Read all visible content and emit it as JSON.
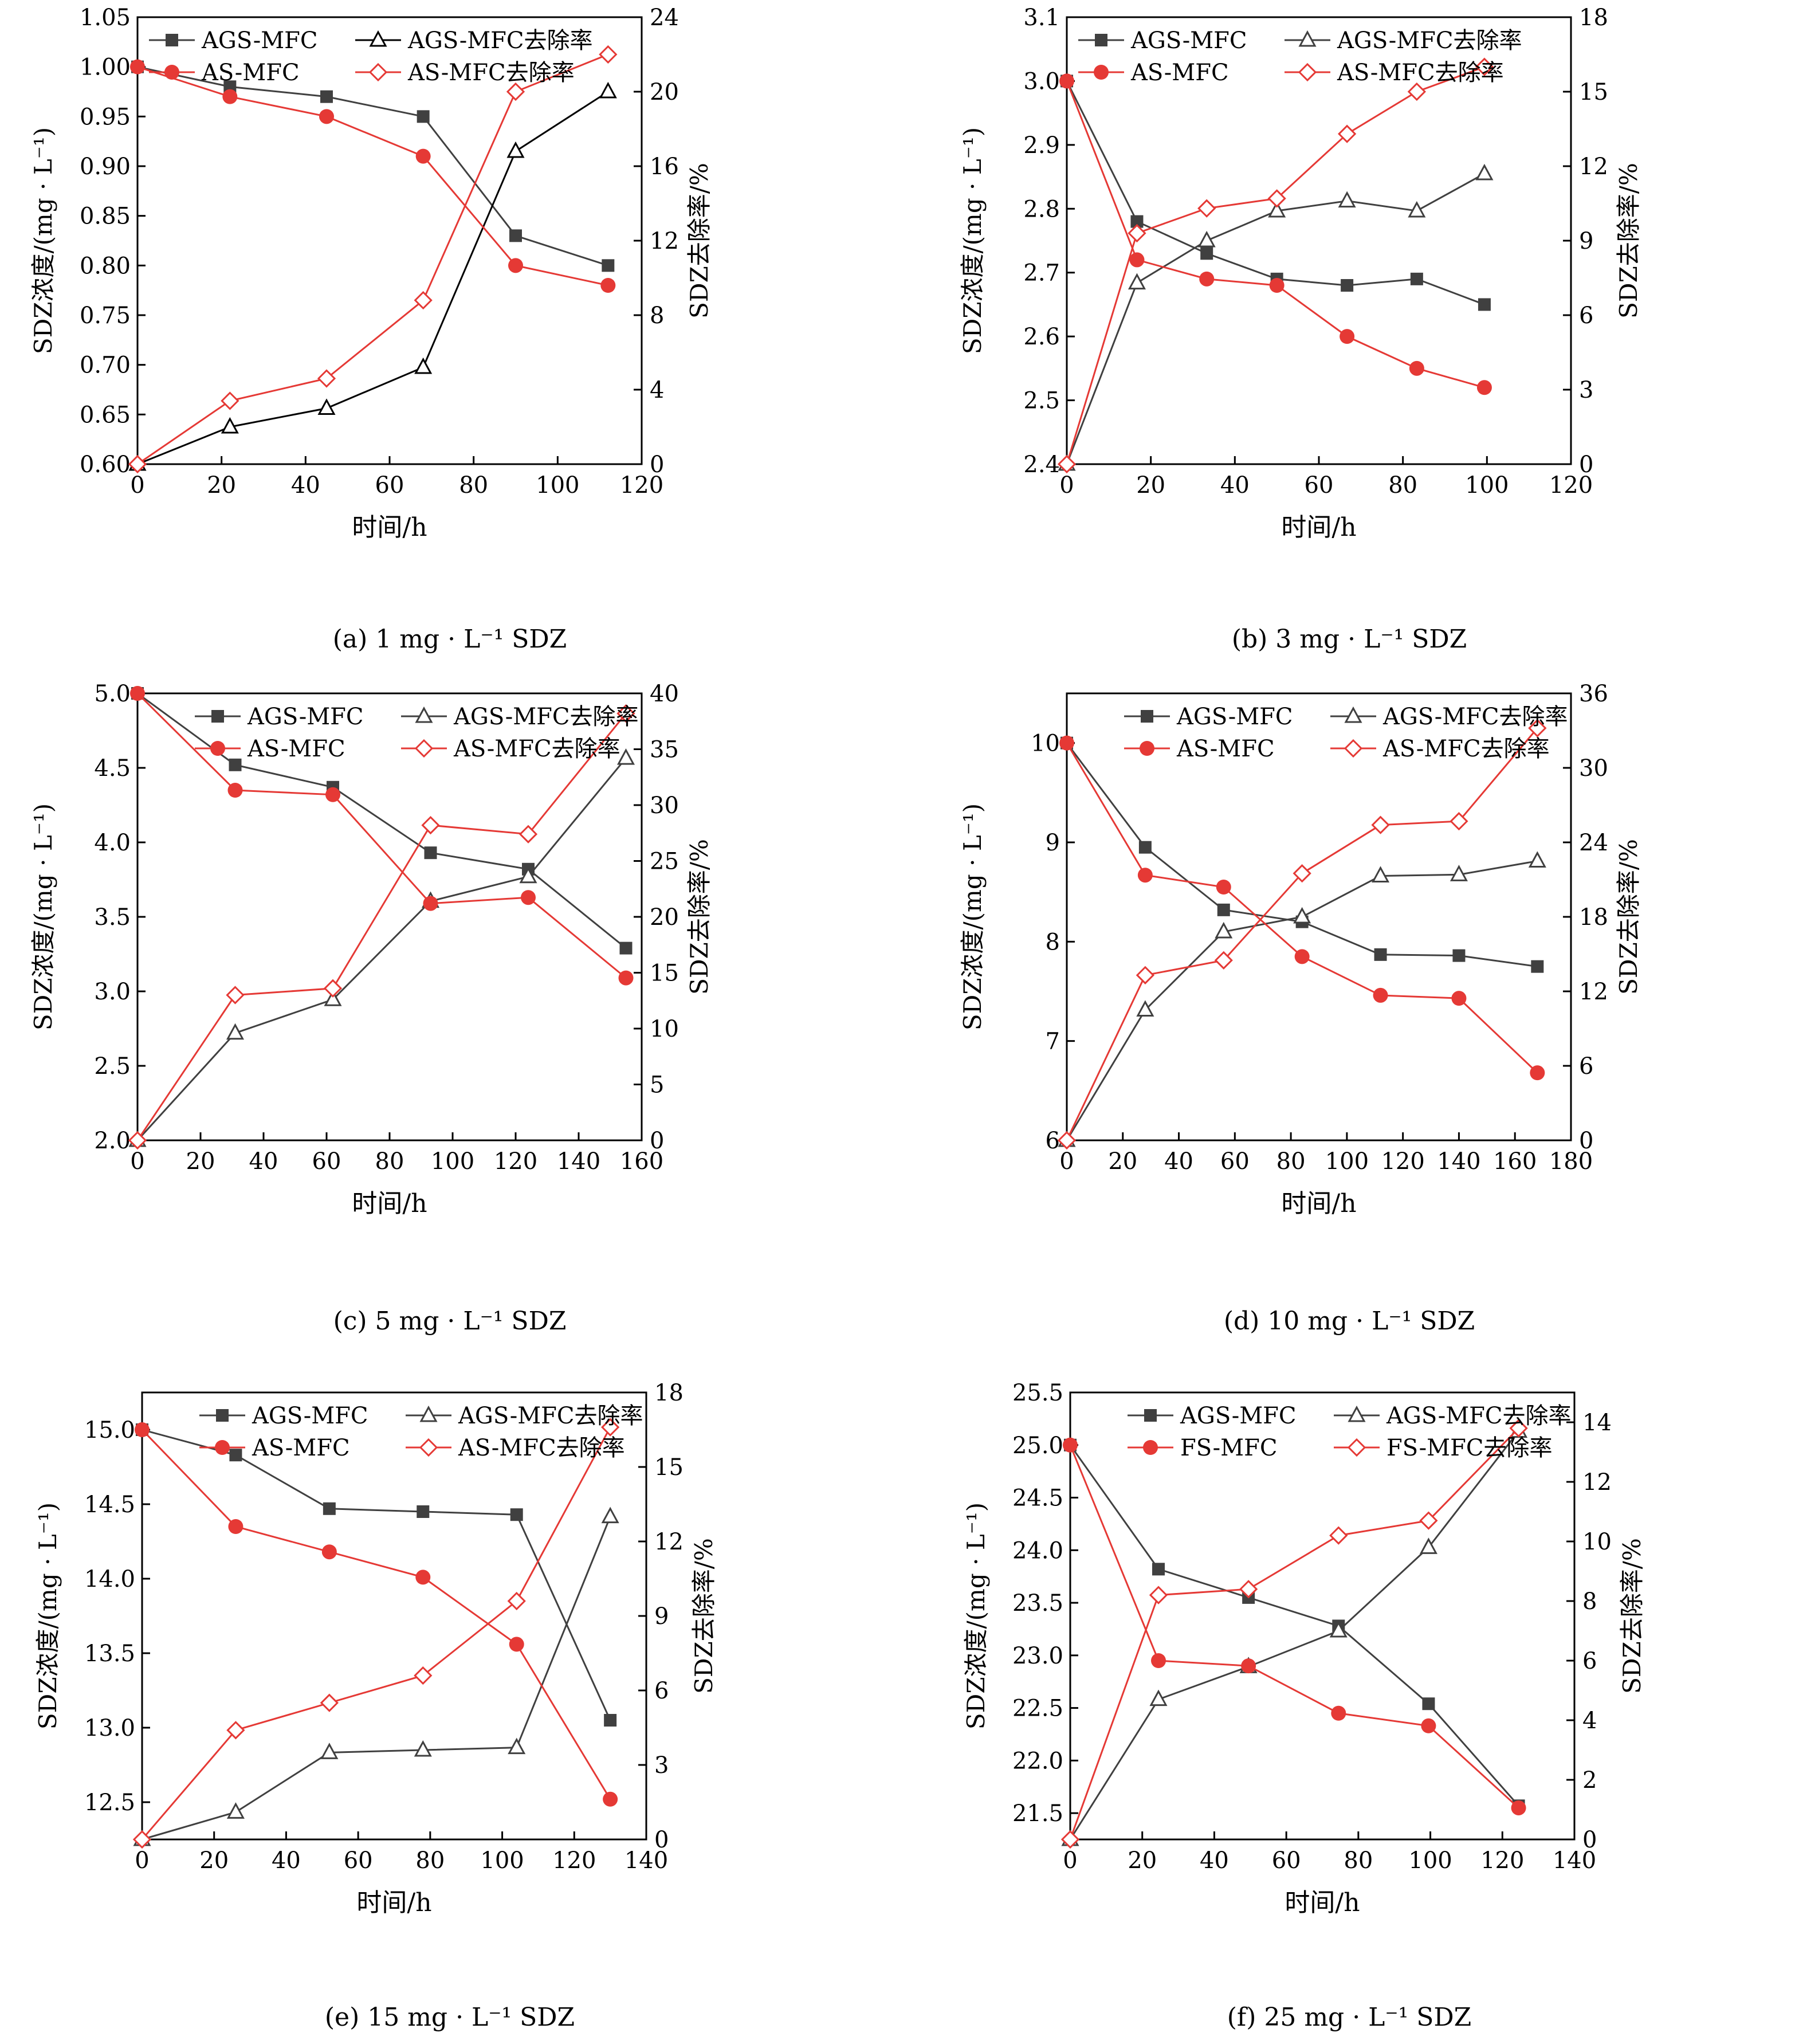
{
  "chart_data": [
    {
      "type": "line",
      "caption": "(a) 1 mg · L⁻¹ SDZ",
      "xlabel": "时间/h",
      "ylabel": "SDZ浓度/(mg · L⁻¹)",
      "y2label": "SDZ去除率/%",
      "xlim": [
        0,
        120
      ],
      "xticks": [
        0,
        20,
        40,
        60,
        80,
        100,
        120
      ],
      "ylim": [
        0.6,
        1.05
      ],
      "yticks": [
        0.6,
        0.65,
        0.7,
        0.75,
        0.8,
        0.85,
        0.9,
        0.95,
        1.0,
        1.05
      ],
      "ydecimals": 2,
      "y2lim": [
        0,
        24
      ],
      "y2ticks": [
        0,
        4,
        8,
        12,
        16,
        20,
        24
      ],
      "y2decimals": 0,
      "legend_position": "top-left",
      "series": [
        {
          "name": "AGS-MFC",
          "axis": "left",
          "marker": "square",
          "color": "#404040",
          "x": [
            0,
            22,
            45,
            68,
            90,
            112
          ],
          "y": [
            1.0,
            0.98,
            0.97,
            0.95,
            0.83,
            0.8
          ]
        },
        {
          "name": "AGS-MFC去除率",
          "axis": "right",
          "marker": "triangle-open",
          "color": "#000000",
          "x": [
            0,
            22,
            45,
            68,
            90,
            112
          ],
          "y": [
            0,
            2.0,
            3.0,
            5.2,
            16.8,
            20.0
          ]
        },
        {
          "name": "AS-MFC",
          "axis": "left",
          "marker": "circle",
          "color": "#e53935",
          "x": [
            0,
            22,
            45,
            68,
            90,
            112
          ],
          "y": [
            1.0,
            0.97,
            0.95,
            0.91,
            0.8,
            0.78
          ]
        },
        {
          "name": "AS-MFC去除率",
          "axis": "right",
          "marker": "diamond-open",
          "color": "#e53935",
          "x": [
            0,
            22,
            45,
            68,
            90,
            112
          ],
          "y": [
            0,
            3.4,
            4.6,
            8.8,
            20.0,
            22.0
          ]
        }
      ]
    },
    {
      "type": "line",
      "caption": "(b) 3 mg · L⁻¹ SDZ",
      "xlabel": "时间/h",
      "ylabel": "SDZ浓度/(mg · L⁻¹)",
      "y2label": "SDZ去除率/%",
      "xlim": [
        0,
        120
      ],
      "xticks": [
        0,
        20,
        40,
        60,
        80,
        100,
        120
      ],
      "ylim": [
        2.4,
        3.1
      ],
      "yticks": [
        2.4,
        2.5,
        2.6,
        2.7,
        2.8,
        2.9,
        3.0,
        3.1
      ],
      "ydecimals": 1,
      "y2lim": [
        0,
        18
      ],
      "y2ticks": [
        0,
        3,
        6,
        9,
        12,
        15,
        18
      ],
      "y2decimals": 0,
      "legend_position": "top-left",
      "series": [
        {
          "name": "AGS-MFC",
          "axis": "left",
          "marker": "square",
          "color": "#404040",
          "x": [
            0,
            16.7,
            33.3,
            50,
            66.7,
            83.3,
            99.4
          ],
          "y": [
            3.0,
            2.78,
            2.73,
            2.69,
            2.68,
            2.69,
            2.65
          ]
        },
        {
          "name": "AGS-MFC去除率",
          "axis": "right",
          "marker": "triangle-open",
          "color": "#404040",
          "x": [
            0,
            16.7,
            33.3,
            50,
            66.7,
            83.3,
            99.4
          ],
          "y": [
            0,
            7.3,
            9.0,
            10.2,
            10.6,
            10.2,
            11.7
          ]
        },
        {
          "name": "AS-MFC",
          "axis": "left",
          "marker": "circle",
          "color": "#e53935",
          "x": [
            0,
            16.7,
            33.3,
            50,
            66.7,
            83.3,
            99.4
          ],
          "y": [
            3.0,
            2.72,
            2.69,
            2.68,
            2.6,
            2.55,
            2.52
          ]
        },
        {
          "name": "AS-MFC去除率",
          "axis": "right",
          "marker": "diamond-open",
          "color": "#e53935",
          "x": [
            0,
            16.7,
            33.3,
            50,
            66.7,
            83.3,
            99.4
          ],
          "y": [
            0,
            9.3,
            10.3,
            10.7,
            13.3,
            15.0,
            16.0
          ]
        }
      ]
    },
    {
      "type": "line",
      "caption": "(c) 5 mg · L⁻¹ SDZ",
      "xlabel": "时间/h",
      "ylabel": "SDZ浓度/(mg · L⁻¹)",
      "y2label": "SDZ去除率/%",
      "xlim": [
        0,
        160
      ],
      "xticks": [
        0,
        20,
        40,
        60,
        80,
        100,
        120,
        140,
        160
      ],
      "ylim": [
        2.0,
        5.0
      ],
      "yticks": [
        2.0,
        2.5,
        3.0,
        3.5,
        4.0,
        4.5,
        5.0
      ],
      "ydecimals": 1,
      "y2lim": [
        0,
        40
      ],
      "y2ticks": [
        0,
        5,
        10,
        15,
        20,
        25,
        30,
        35,
        40
      ],
      "y2decimals": 0,
      "legend_position": "top-right",
      "series": [
        {
          "name": "AGS-MFC",
          "axis": "left",
          "marker": "square",
          "color": "#404040",
          "x": [
            0,
            31,
            62,
            93,
            124,
            155
          ],
          "y": [
            5.0,
            4.52,
            4.37,
            3.93,
            3.82,
            3.29
          ]
        },
        {
          "name": "AGS-MFC去除率",
          "axis": "right",
          "marker": "triangle-open",
          "color": "#404040",
          "x": [
            0,
            31,
            62,
            93,
            124,
            155
          ],
          "y": [
            0,
            9.6,
            12.6,
            21.4,
            23.6,
            34.2
          ]
        },
        {
          "name": "AS-MFC",
          "axis": "left",
          "marker": "circle",
          "color": "#e53935",
          "x": [
            0,
            31,
            62,
            93,
            124,
            155
          ],
          "y": [
            5.0,
            4.35,
            4.32,
            3.59,
            3.63,
            3.09
          ]
        },
        {
          "name": "AS-MFC去除率",
          "axis": "right",
          "marker": "diamond-open",
          "color": "#e53935",
          "x": [
            0,
            31,
            62,
            93,
            124,
            155
          ],
          "y": [
            0,
            13.0,
            13.6,
            28.2,
            27.4,
            38.2
          ]
        }
      ]
    },
    {
      "type": "line",
      "caption": "(d) 10 mg · L⁻¹ SDZ",
      "xlabel": "时间/h",
      "ylabel": "SDZ浓度/(mg · L⁻¹)",
      "y2label": "SDZ去除率/%",
      "xlim": [
        0,
        180
      ],
      "xticks": [
        0,
        20,
        40,
        60,
        80,
        100,
        120,
        140,
        160,
        180
      ],
      "ylim": [
        6,
        10.5
      ],
      "yticks": [
        6,
        7,
        8,
        9,
        10
      ],
      "ydecimals": 0,
      "y2lim": [
        0,
        36
      ],
      "y2ticks": [
        0,
        6,
        12,
        18,
        24,
        30,
        36
      ],
      "y2decimals": 0,
      "legend_position": "top-right",
      "series": [
        {
          "name": "AGS-MFC",
          "axis": "left",
          "marker": "square",
          "color": "#404040",
          "x": [
            0,
            28,
            56,
            84,
            112,
            140,
            168
          ],
          "y": [
            10.0,
            8.95,
            8.32,
            8.2,
            7.87,
            7.86,
            7.75
          ]
        },
        {
          "name": "AGS-MFC去除率",
          "axis": "right",
          "marker": "triangle-open",
          "color": "#404040",
          "x": [
            0,
            28,
            56,
            84,
            112,
            140,
            168
          ],
          "y": [
            0,
            10.5,
            16.8,
            18.0,
            21.3,
            21.4,
            22.5
          ]
        },
        {
          "name": "AS-MFC",
          "axis": "left",
          "marker": "circle",
          "color": "#e53935",
          "x": [
            0,
            28,
            56,
            84,
            112,
            140,
            168
          ],
          "y": [
            10.0,
            8.67,
            8.55,
            7.85,
            7.46,
            7.43,
            6.68
          ]
        },
        {
          "name": "AS-MFC去除率",
          "axis": "right",
          "marker": "diamond-open",
          "color": "#e53935",
          "x": [
            0,
            28,
            56,
            84,
            112,
            140,
            168
          ],
          "y": [
            0,
            13.3,
            14.5,
            21.5,
            25.4,
            25.7,
            33.2
          ]
        }
      ]
    },
    {
      "type": "line",
      "caption": "(e) 15 mg · L⁻¹ SDZ",
      "xlabel": "时间/h",
      "ylabel": "SDZ浓度/(mg · L⁻¹)",
      "y2label": "SDZ去除率/%",
      "xlim": [
        0,
        140
      ],
      "xticks": [
        0,
        20,
        40,
        60,
        80,
        100,
        120,
        140
      ],
      "ylim": [
        12.25,
        15.25
      ],
      "yticks": [
        12.5,
        13.0,
        13.5,
        14.0,
        14.5,
        15.0
      ],
      "ydecimals": 1,
      "y2lim": [
        0,
        18
      ],
      "y2ticks": [
        0,
        3,
        6,
        9,
        12,
        15,
        18
      ],
      "y2decimals": 0,
      "legend_position": "top-right",
      "series": [
        {
          "name": "AGS-MFC",
          "axis": "left",
          "marker": "square",
          "color": "#404040",
          "x": [
            0,
            26,
            52,
            78,
            104,
            130
          ],
          "y": [
            15.0,
            14.83,
            14.47,
            14.45,
            14.43,
            13.05
          ]
        },
        {
          "name": "AGS-MFC去除率",
          "axis": "right",
          "marker": "triangle-open",
          "color": "#404040",
          "x": [
            0,
            26,
            52,
            78,
            104,
            130
          ],
          "y": [
            0,
            1.1,
            3.5,
            3.6,
            3.7,
            13.0
          ]
        },
        {
          "name": "AS-MFC",
          "axis": "left",
          "marker": "circle",
          "color": "#e53935",
          "x": [
            0,
            26,
            52,
            78,
            104,
            130
          ],
          "y": [
            15.0,
            14.35,
            14.18,
            14.01,
            13.56,
            12.52
          ]
        },
        {
          "name": "AS-MFC去除率",
          "axis": "right",
          "marker": "diamond-open",
          "color": "#e53935",
          "x": [
            0,
            26,
            52,
            78,
            104,
            130
          ],
          "y": [
            0,
            4.4,
            5.5,
            6.6,
            9.6,
            16.6
          ]
        }
      ]
    },
    {
      "type": "line",
      "caption": "(f) 25 mg · L⁻¹ SDZ",
      "xlabel": "时间/h",
      "ylabel": "SDZ浓度/(mg · L⁻¹)",
      "y2label": "SDZ去除率/%",
      "xlim": [
        0,
        140
      ],
      "xticks": [
        0,
        20,
        40,
        60,
        80,
        100,
        120,
        140
      ],
      "ylim": [
        21.25,
        25.5
      ],
      "yticks": [
        21.5,
        22.0,
        22.5,
        23.0,
        23.5,
        24.0,
        24.5,
        25.0,
        25.5
      ],
      "ydecimals": 1,
      "y2lim": [
        0,
        15
      ],
      "y2ticks": [
        0,
        2,
        4,
        6,
        8,
        10,
        12,
        14
      ],
      "y2decimals": 0,
      "legend_position": "top-right",
      "series": [
        {
          "name": "AGS-MFC",
          "axis": "left",
          "marker": "square",
          "color": "#404040",
          "x": [
            0,
            24.5,
            49.5,
            74.5,
            99.5,
            124.5
          ],
          "y": [
            25.0,
            23.82,
            23.55,
            23.28,
            22.54,
            21.57
          ]
        },
        {
          "name": "AGS-MFC去除率",
          "axis": "right",
          "marker": "triangle-open",
          "color": "#404040",
          "x": [
            0,
            24.5,
            49.5,
            74.5,
            99.5,
            124.5
          ],
          "y": [
            0,
            4.7,
            5.8,
            7.0,
            9.8,
            13.7
          ]
        },
        {
          "name": "FS-MFC",
          "axis": "left",
          "marker": "circle",
          "color": "#e53935",
          "x": [
            0,
            24.5,
            49.5,
            74.5,
            99.5,
            124.5
          ],
          "y": [
            25.0,
            22.95,
            22.9,
            22.45,
            22.33,
            21.55
          ]
        },
        {
          "name": "FS-MFC去除率",
          "axis": "right",
          "marker": "diamond-open",
          "color": "#e53935",
          "x": [
            0,
            24.5,
            49.5,
            74.5,
            99.5,
            124.5
          ],
          "y": [
            0,
            8.2,
            8.4,
            10.2,
            10.7,
            13.8
          ]
        }
      ]
    }
  ]
}
